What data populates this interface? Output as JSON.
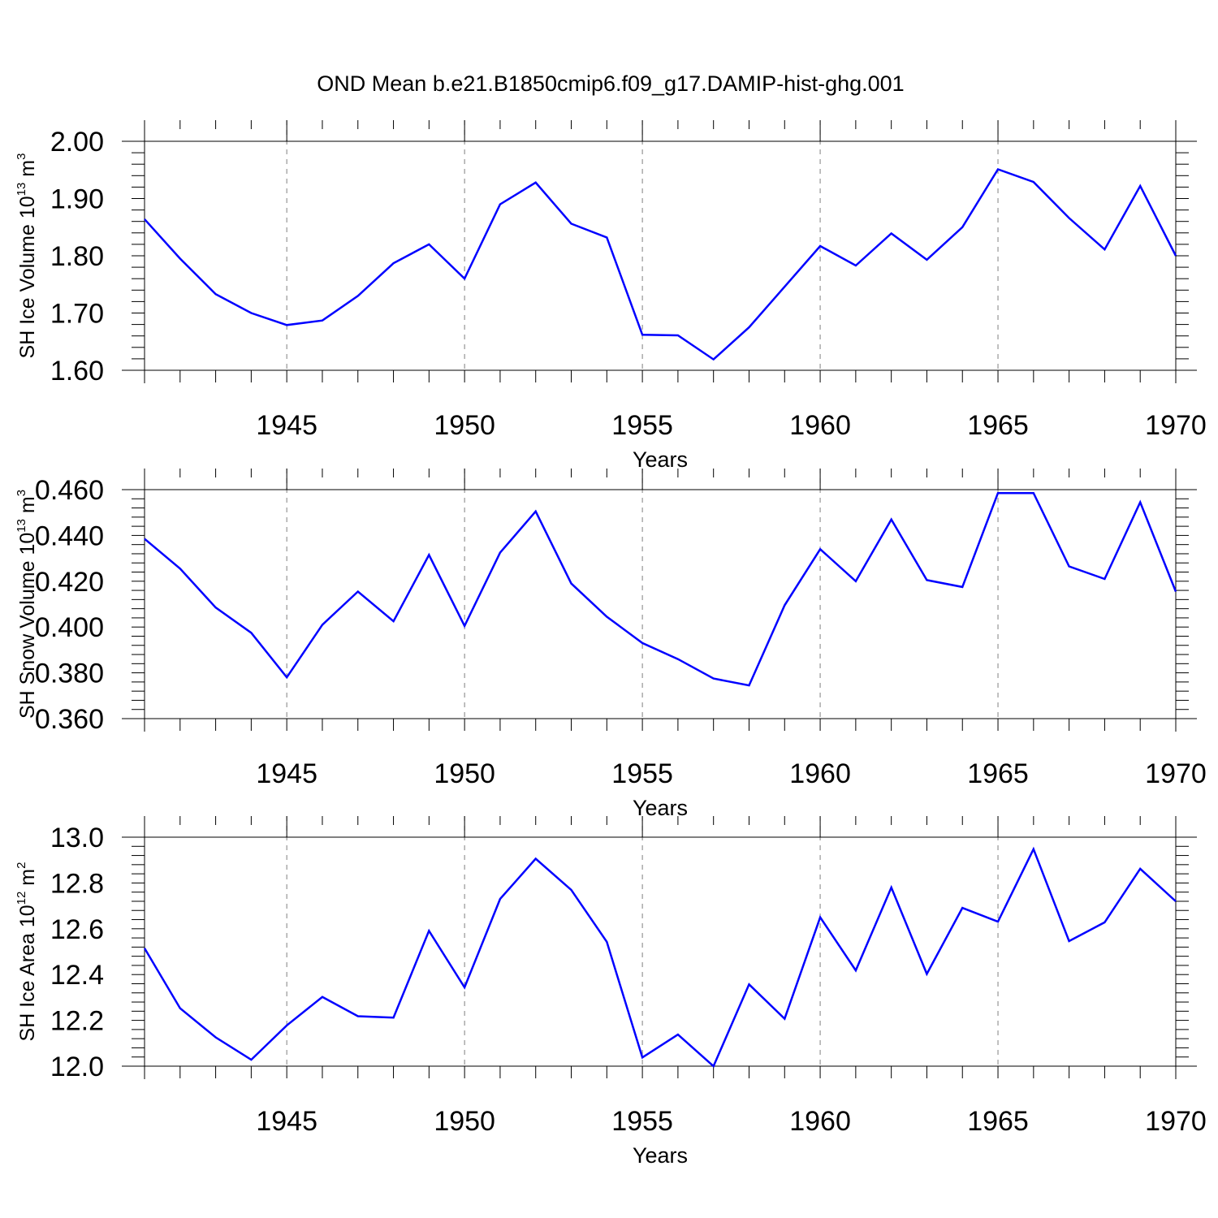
{
  "figure_title": "OND Mean b.e21.B1850cmip6.f09_g17.DAMIP-hist-ghg.001",
  "colors": {
    "line": "#0000ff",
    "axis": "#000000",
    "grid": "#808080"
  },
  "chart_data": [
    {
      "type": "line",
      "ylabel_text": "SH Ice Volume 10",
      "ylabel_exp": "13",
      "ylabel_unit": "m",
      "ylabel_unit_exp": "3",
      "xlabel": "Years",
      "xlim": [
        1941,
        1970
      ],
      "ylim": [
        1.6,
        2.0
      ],
      "x_ticks": [
        1945,
        1950,
        1955,
        1960,
        1965,
        1970
      ],
      "x_tick_labels": [
        "1945",
        "1950",
        "1955",
        "1960",
        "1965",
        "1970"
      ],
      "y_ticks": [
        1.6,
        1.7,
        1.8,
        1.9,
        2.0
      ],
      "y_tick_labels": [
        "1.60",
        "1.70",
        "1.80",
        "1.90",
        "2.00"
      ],
      "y_minor_step": 0.02,
      "x": [
        1941,
        1942,
        1943,
        1944,
        1945,
        1946,
        1947,
        1948,
        1949,
        1950,
        1951,
        1952,
        1953,
        1954,
        1955,
        1956,
        1957,
        1958,
        1959,
        1960,
        1961,
        1962,
        1963,
        1964,
        1965,
        1966,
        1967,
        1968,
        1969,
        1970
      ],
      "values": [
        1.864,
        1.795,
        1.733,
        1.7,
        1.679,
        1.687,
        1.73,
        1.787,
        1.82,
        1.76,
        1.89,
        1.928,
        1.856,
        1.832,
        1.662,
        1.661,
        1.619,
        1.675,
        1.746,
        1.817,
        1.783,
        1.839,
        1.793,
        1.85,
        1.951,
        1.929,
        1.866,
        1.811,
        1.922,
        1.8
      ]
    },
    {
      "type": "line",
      "ylabel_text": "SH Snow Volume 10",
      "ylabel_exp": "13",
      "ylabel_unit": "m",
      "ylabel_unit_exp": "3",
      "xlabel": "Years",
      "xlim": [
        1941,
        1970
      ],
      "ylim": [
        0.36,
        0.46
      ],
      "x_ticks": [
        1945,
        1950,
        1955,
        1960,
        1965,
        1970
      ],
      "x_tick_labels": [
        "1945",
        "1950",
        "1955",
        "1960",
        "1965",
        "1970"
      ],
      "y_ticks": [
        0.36,
        0.38,
        0.4,
        0.42,
        0.44,
        0.46
      ],
      "y_tick_labels": [
        "0.360",
        "0.380",
        "0.400",
        "0.420",
        "0.440",
        "0.460"
      ],
      "y_minor_step": 0.004,
      "x": [
        1941,
        1942,
        1943,
        1944,
        1945,
        1946,
        1947,
        1948,
        1949,
        1950,
        1951,
        1952,
        1953,
        1954,
        1955,
        1956,
        1957,
        1958,
        1959,
        1960,
        1961,
        1962,
        1963,
        1964,
        1965,
        1966,
        1967,
        1968,
        1969,
        1970
      ],
      "values": [
        0.4385,
        0.4255,
        0.4085,
        0.3975,
        0.378,
        0.401,
        0.4155,
        0.4025,
        0.4315,
        0.4005,
        0.4325,
        0.4505,
        0.419,
        0.4045,
        0.393,
        0.386,
        0.3775,
        0.3745,
        0.4095,
        0.434,
        0.42,
        0.447,
        0.4205,
        0.4175,
        0.4585,
        0.4585,
        0.4265,
        0.421,
        0.4545,
        0.4155
      ]
    },
    {
      "type": "line",
      "ylabel_text": "SH Ice Area 10",
      "ylabel_exp": "12",
      "ylabel_unit": "m",
      "ylabel_unit_exp": "2",
      "xlabel": "Years",
      "xlim": [
        1941,
        1970
      ],
      "ylim": [
        12.0,
        13.0
      ],
      "x_ticks": [
        1945,
        1950,
        1955,
        1960,
        1965,
        1970
      ],
      "x_tick_labels": [
        "1945",
        "1950",
        "1955",
        "1960",
        "1965",
        "1970"
      ],
      "y_ticks": [
        12.0,
        12.2,
        12.4,
        12.6,
        12.8,
        13.0
      ],
      "y_tick_labels": [
        "12.0",
        "12.2",
        "12.4",
        "12.6",
        "12.8",
        "13.0"
      ],
      "y_minor_step": 0.04,
      "x": [
        1941,
        1942,
        1943,
        1944,
        1945,
        1946,
        1947,
        1948,
        1949,
        1950,
        1951,
        1952,
        1953,
        1954,
        1955,
        1956,
        1957,
        1958,
        1959,
        1960,
        1961,
        1962,
        1963,
        1964,
        1965,
        1966,
        1967,
        1968,
        1969,
        1970
      ],
      "values": [
        12.515,
        12.253,
        12.126,
        12.028,
        12.178,
        12.302,
        12.218,
        12.212,
        12.591,
        12.344,
        12.73,
        12.906,
        12.77,
        12.543,
        12.038,
        12.138,
        12.0,
        12.357,
        12.207,
        12.65,
        12.418,
        12.78,
        12.403,
        12.691,
        12.631,
        12.948,
        12.546,
        12.628,
        12.862,
        12.72
      ]
    }
  ]
}
